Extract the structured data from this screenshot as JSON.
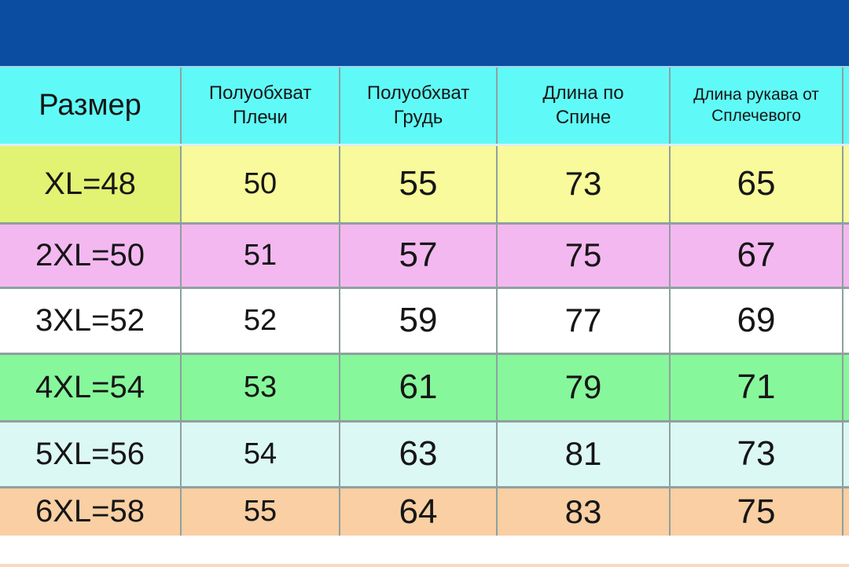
{
  "banner": {
    "color": "#0b4da1"
  },
  "size_chart": {
    "header_color": "#5ffaf7",
    "border_color": "#8fa0a0",
    "columns": [
      {
        "id": "size",
        "label": "Размер"
      },
      {
        "id": "half_shoulder",
        "label": "Полуобхват\nПлечи"
      },
      {
        "id": "half_chest",
        "label": "Полуобхват\nГрудь"
      },
      {
        "id": "back_length",
        "label": "Длина по\nСпине"
      },
      {
        "id": "sleeve_length",
        "label": "Длина рукава от\nСплечевого"
      }
    ],
    "rows": [
      {
        "size": "XL=48",
        "values": [
          "50",
          "55",
          "73",
          "65"
        ],
        "row_color": "#f8fa9b",
        "size_cell_color": "#e2f273"
      },
      {
        "size": "2XL=50",
        "values": [
          "51",
          "57",
          "75",
          "67"
        ],
        "row_color": "#f4b8f1",
        "size_cell_color": "#f4b8f1"
      },
      {
        "size": "3XL=52",
        "values": [
          "52",
          "59",
          "77",
          "69"
        ],
        "row_color": "#ffffff",
        "size_cell_color": "#ffffff"
      },
      {
        "size": "4XL=54",
        "values": [
          "53",
          "61",
          "79",
          "71"
        ],
        "row_color": "#87f79b",
        "size_cell_color": "#87f79b"
      },
      {
        "size": "5XL=56",
        "values": [
          "54",
          "63",
          "81",
          "73"
        ],
        "row_color": "#dcf8f4",
        "size_cell_color": "#dcf8f4"
      },
      {
        "size": "6XL=58",
        "values": [
          "55",
          "64",
          "83",
          "75"
        ],
        "row_color": "#f9cfa3",
        "size_cell_color": "#f9cfa3"
      }
    ]
  }
}
